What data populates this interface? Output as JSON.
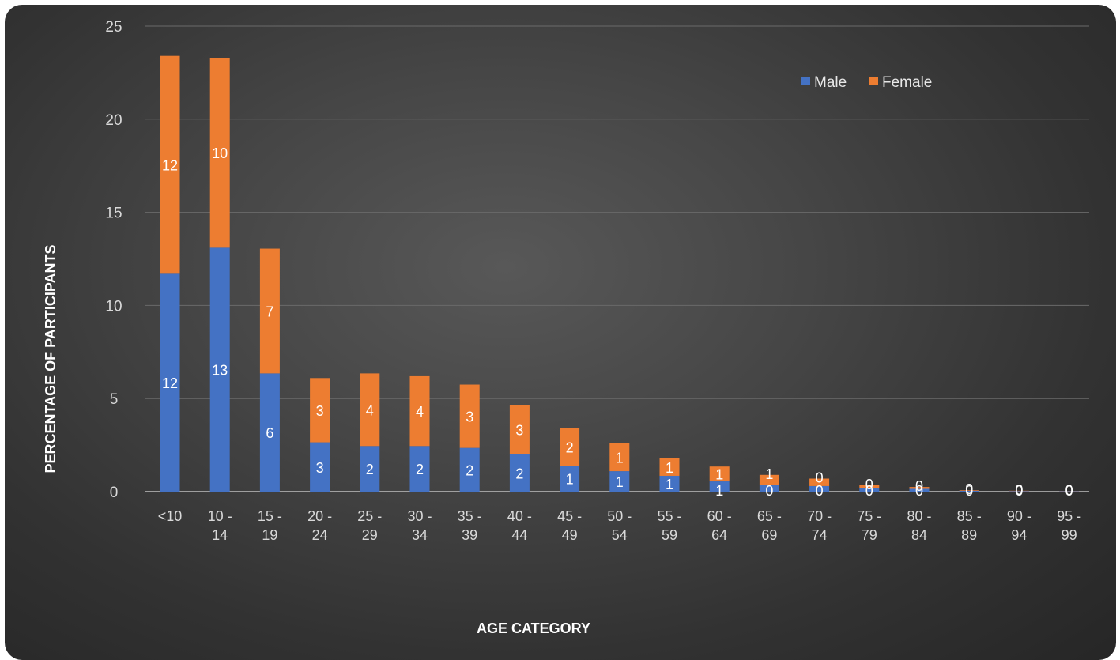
{
  "chart_data": {
    "type": "bar",
    "stacked": true,
    "title": "",
    "xlabel": "AGE CATEGORY",
    "ylabel": "PERCENTAGE OF PARTICIPANTS",
    "ylim": [
      0,
      25
    ],
    "yticks": [
      0,
      5,
      10,
      15,
      20,
      25
    ],
    "grid": true,
    "legend_position": "top-right",
    "categories": [
      [
        "<10"
      ],
      [
        "10 -",
        "14"
      ],
      [
        "15 -",
        "19"
      ],
      [
        "20 -",
        "24"
      ],
      [
        "25 -",
        "29"
      ],
      [
        "30 -",
        "34"
      ],
      [
        "35 -",
        "39"
      ],
      [
        "40 -",
        "44"
      ],
      [
        "45 -",
        "49"
      ],
      [
        "50 -",
        "54"
      ],
      [
        "55 -",
        "59"
      ],
      [
        "60 -",
        "64"
      ],
      [
        "65 -",
        "69"
      ],
      [
        "70 -",
        "74"
      ],
      [
        "75 -",
        "79"
      ],
      [
        "80 -",
        "84"
      ],
      [
        "85 -",
        "89"
      ],
      [
        "90 -",
        "94"
      ],
      [
        "95 -",
        "99"
      ]
    ],
    "series": [
      {
        "name": "Male",
        "color": "#4472c4",
        "values": [
          11.7,
          13.1,
          6.35,
          2.65,
          2.45,
          2.45,
          2.35,
          2.0,
          1.4,
          1.1,
          0.85,
          0.55,
          0.35,
          0.3,
          0.2,
          0.15,
          0.05,
          0.03,
          0.02
        ],
        "labels": [
          "12",
          "13",
          "6",
          "3",
          "2",
          "2",
          "2",
          "2",
          "1",
          "1",
          "1",
          "1",
          "0",
          "0",
          "0",
          "0",
          "0",
          "0",
          "0"
        ]
      },
      {
        "name": "Female",
        "color": "#ed7d31",
        "values": [
          11.7,
          10.2,
          6.7,
          3.45,
          3.9,
          3.75,
          3.4,
          2.65,
          2.0,
          1.5,
          0.95,
          0.8,
          0.55,
          0.4,
          0.15,
          0.1,
          0.03,
          0.02,
          0.01
        ],
        "labels": [
          "12",
          "10",
          "7",
          "3",
          "4",
          "4",
          "3",
          "3",
          "2",
          "1",
          "1",
          "1",
          "1",
          "0",
          "0",
          "0",
          "0",
          "0",
          "0"
        ]
      }
    ]
  }
}
